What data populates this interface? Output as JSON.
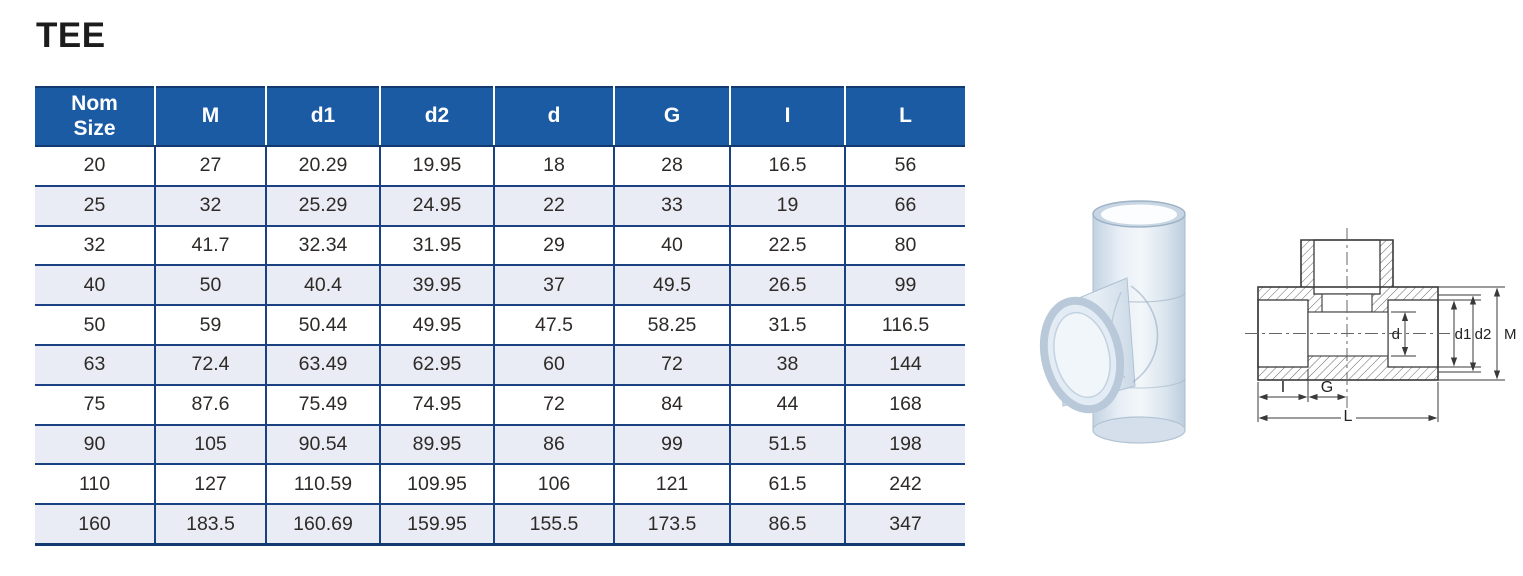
{
  "page": {
    "title": "TEE"
  },
  "table": {
    "columns": [
      "Nom\nSize",
      "M",
      "d1",
      "d2",
      "d",
      "G",
      "I",
      "L"
    ],
    "rows": [
      [
        "20",
        "27",
        "20.29",
        "19.95",
        "18",
        "28",
        "16.5",
        "56"
      ],
      [
        "25",
        "32",
        "25.29",
        "24.95",
        "22",
        "33",
        "19",
        "66"
      ],
      [
        "32",
        "41.7",
        "32.34",
        "31.95",
        "29",
        "40",
        "22.5",
        "80"
      ],
      [
        "40",
        "50",
        "40.4",
        "39.95",
        "37",
        "49.5",
        "26.5",
        "99"
      ],
      [
        "50",
        "59",
        "50.44",
        "49.95",
        "47.5",
        "58.25",
        "31.5",
        "116.5"
      ],
      [
        "63",
        "72.4",
        "63.49",
        "62.95",
        "60",
        "72",
        "38",
        "144"
      ],
      [
        "75",
        "87.6",
        "75.49",
        "74.95",
        "72",
        "84",
        "44",
        "168"
      ],
      [
        "90",
        "105",
        "90.54",
        "89.95",
        "86",
        "99",
        "51.5",
        "198"
      ],
      [
        "110",
        "127",
        "110.59",
        "109.95",
        "106",
        "121",
        "61.5",
        "242"
      ],
      [
        "160",
        "183.5",
        "160.69",
        "159.95",
        "155.5",
        "173.5",
        "86.5",
        "347"
      ]
    ]
  },
  "diagram": {
    "labels": {
      "d": "d",
      "d1": "d1",
      "d2": "d2",
      "M": "M",
      "I": "I",
      "G": "G",
      "L": "L"
    }
  },
  "colors": {
    "header_bg": "#1b5ba4",
    "row_alt_bg": "#e9ecf4",
    "grid_line": "#1a4182",
    "outer_border": "#133a70",
    "body_text": "#2e2a28",
    "title_text": "#1c1c1c",
    "drawing_line": "#3a3a3a"
  }
}
